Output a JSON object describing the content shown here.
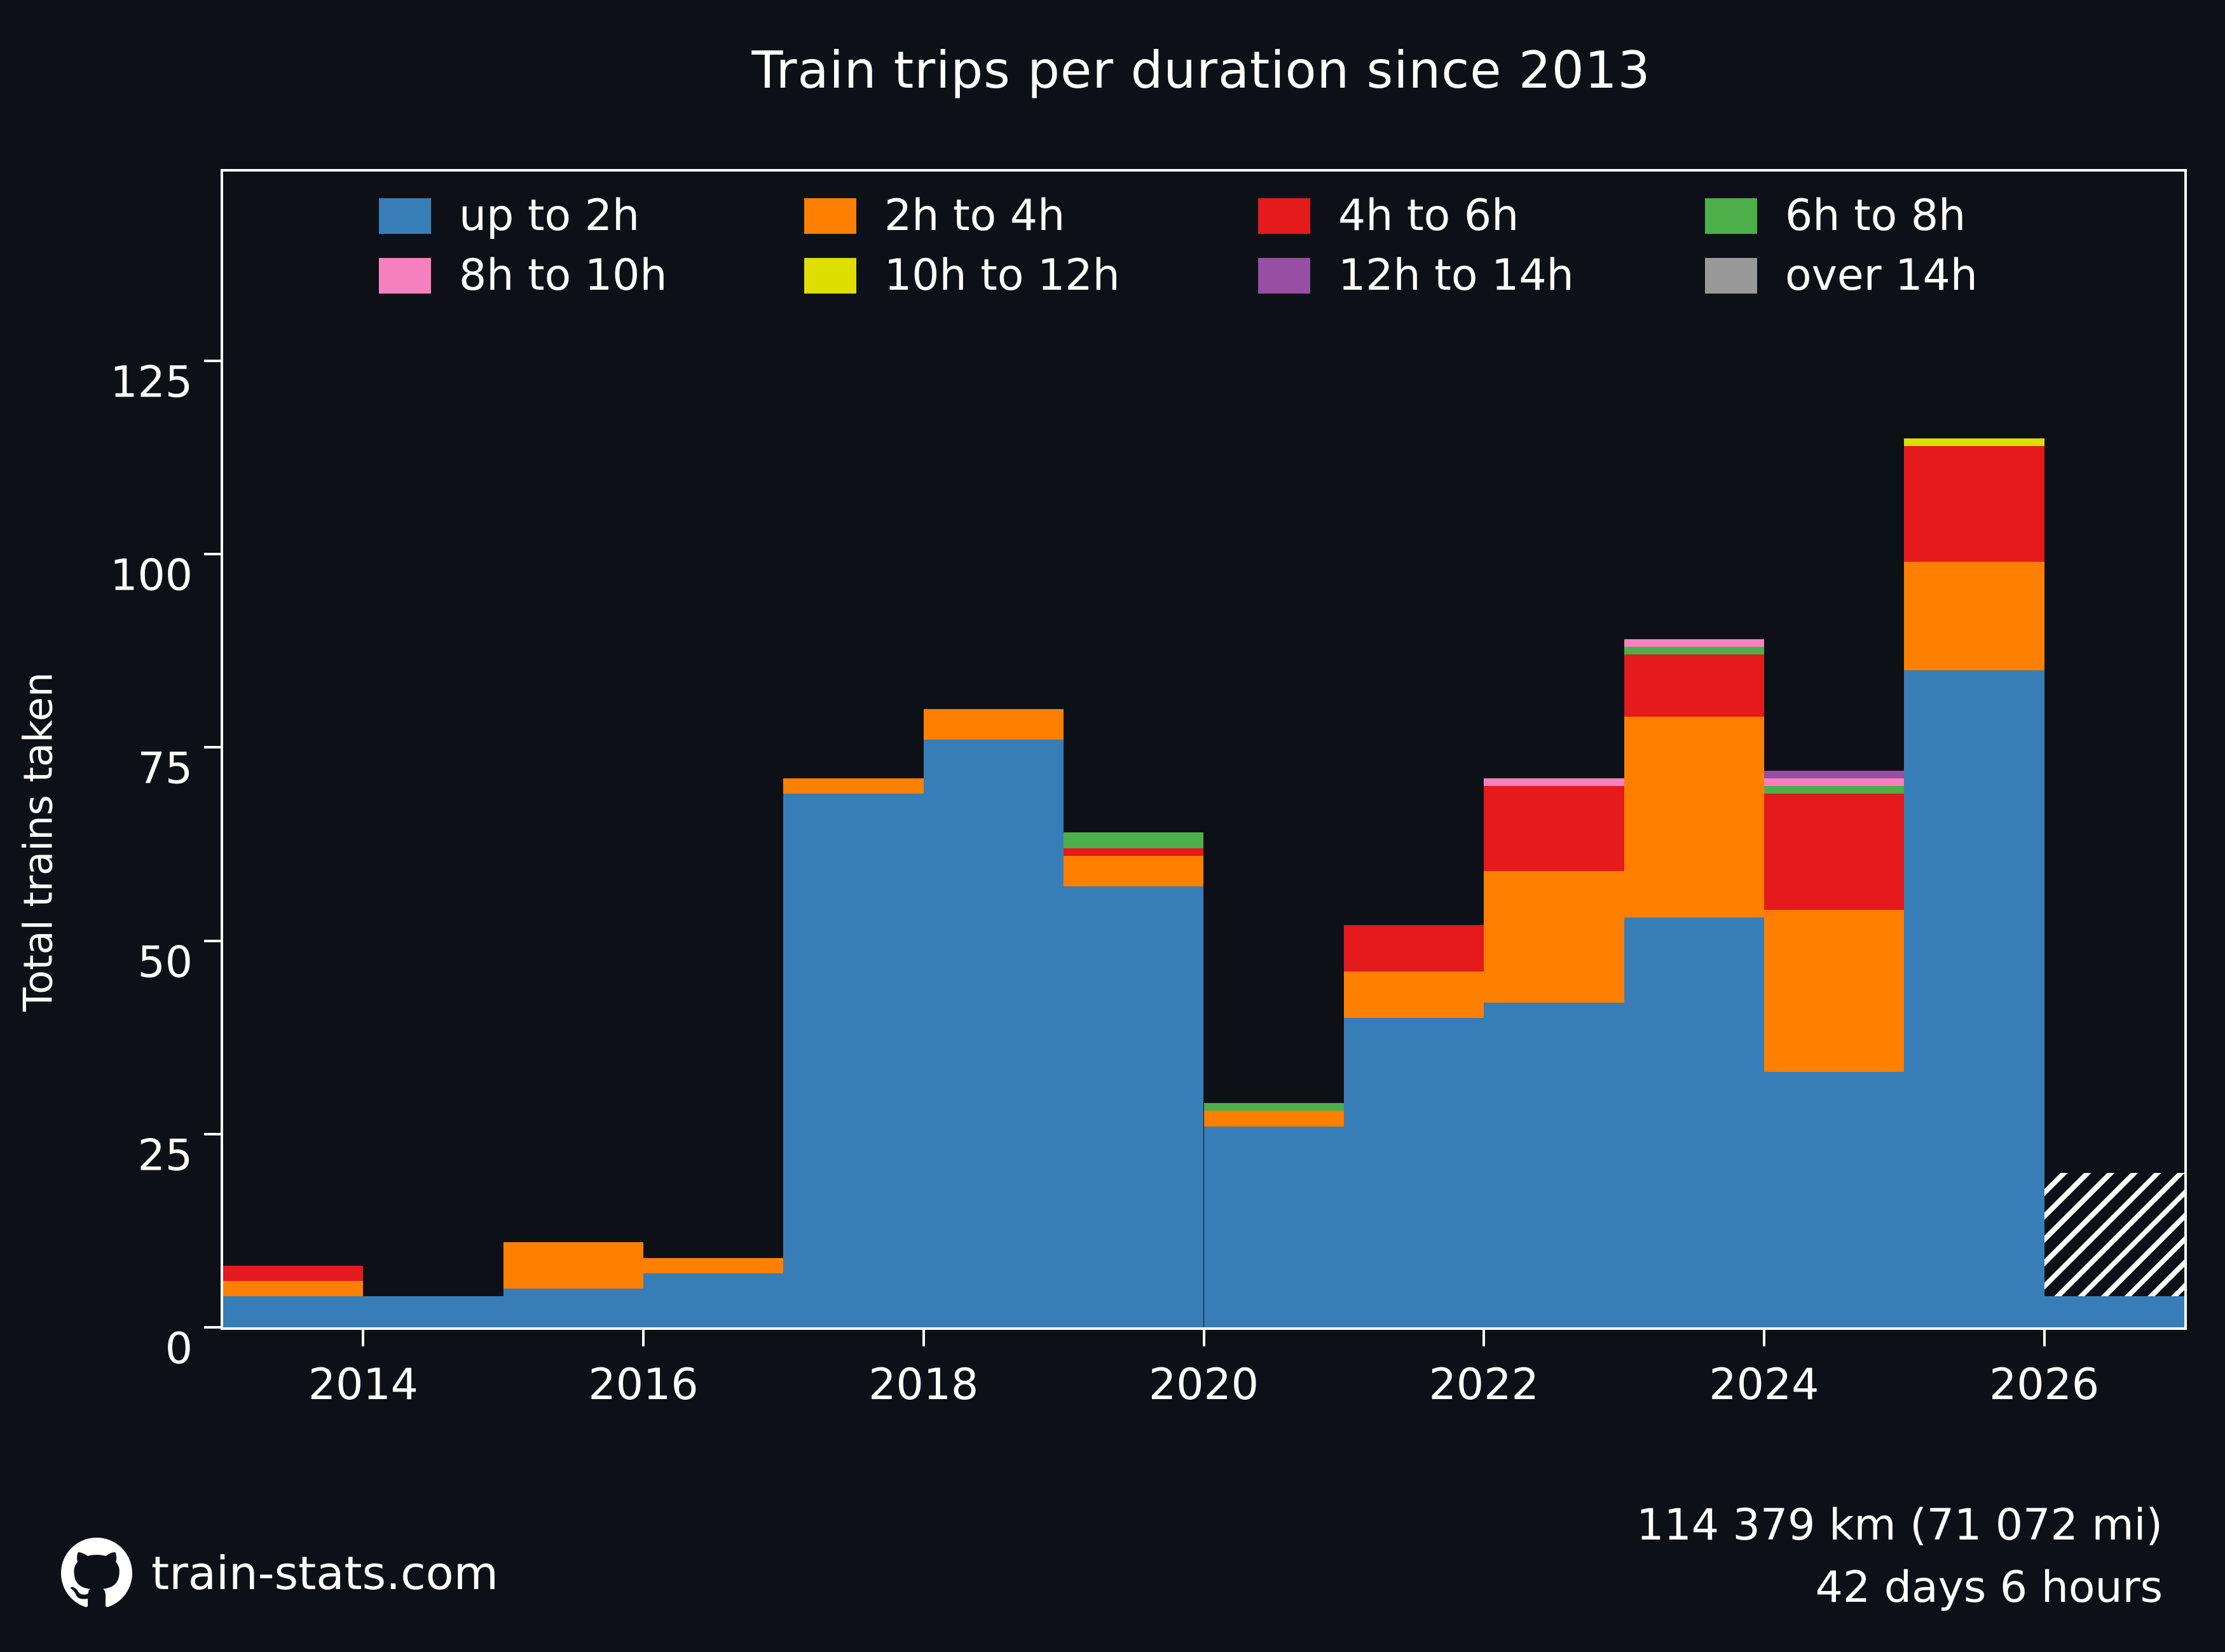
{
  "title": "Train trips per duration since 2013",
  "footer": {
    "site": "train-stats.com",
    "distance": "114 379 km (71 072 mi)",
    "duration": "42 days 6 hours"
  },
  "colors": {
    "background": "#0d1117",
    "text": "#ffffff",
    "spine": "#ffffff"
  },
  "chart_data": {
    "type": "bar",
    "stacked": true,
    "title": "Train trips per duration since 2013",
    "xlabel": "",
    "ylabel": "Total trains taken",
    "categories": [
      2013,
      2014,
      2015,
      2016,
      2017,
      2018,
      2019,
      2020,
      2021,
      2022,
      2023,
      2024,
      2025,
      2026
    ],
    "xticks": [
      2014,
      2016,
      2018,
      2020,
      2022,
      2024,
      2026
    ],
    "yticks": [
      0,
      25,
      50,
      75,
      100,
      125
    ],
    "xlim": [
      2013,
      2027
    ],
    "ylim": [
      0,
      149.5
    ],
    "grid": false,
    "legend_position": "upper-left-inside, 2 rows of 4",
    "series": [
      {
        "name": "up to 2h",
        "color": "#377eb8",
        "values": [
          4,
          4,
          5,
          7,
          69,
          76,
          57,
          26,
          40,
          42,
          53,
          33,
          85,
          4
        ]
      },
      {
        "name": "2h to 4h",
        "color": "#ff7f00",
        "values": [
          2,
          0,
          6,
          2,
          2,
          4,
          4,
          2,
          6,
          17,
          26,
          21,
          14,
          0
        ]
      },
      {
        "name": "4h to 6h",
        "color": "#e41a1c",
        "values": [
          2,
          0,
          0,
          0,
          0,
          0,
          1,
          0,
          6,
          11,
          8,
          15,
          15,
          0
        ]
      },
      {
        "name": "6h to 8h",
        "color": "#4daf4a",
        "values": [
          0,
          0,
          0,
          0,
          0,
          0,
          2,
          1,
          0,
          0,
          1,
          1,
          0,
          0
        ]
      },
      {
        "name": "8h to 10h",
        "color": "#f781bf",
        "values": [
          0,
          0,
          0,
          0,
          0,
          0,
          0,
          0,
          0,
          1,
          1,
          1,
          0,
          0
        ]
      },
      {
        "name": "10h to 12h",
        "color": "#dede00",
        "values": [
          0,
          0,
          0,
          0,
          0,
          0,
          0,
          0,
          0,
          0,
          0,
          0,
          1,
          0
        ]
      },
      {
        "name": "12h to 14h",
        "color": "#984ea3",
        "values": [
          0,
          0,
          0,
          0,
          0,
          0,
          0,
          0,
          0,
          0,
          0,
          1,
          0,
          0
        ]
      },
      {
        "name": "over 14h",
        "color": "#999999",
        "values": [
          0,
          0,
          0,
          0,
          0,
          0,
          0,
          0,
          0,
          0,
          0,
          0,
          0,
          0
        ]
      }
    ],
    "totals": [
      8,
      4,
      11,
      9,
      71,
      80,
      64,
      29,
      52,
      71,
      89,
      72,
      115,
      20
    ],
    "projection": {
      "category": 2026,
      "from": 4,
      "to": 20,
      "hatch": "white diagonal stripes"
    }
  }
}
